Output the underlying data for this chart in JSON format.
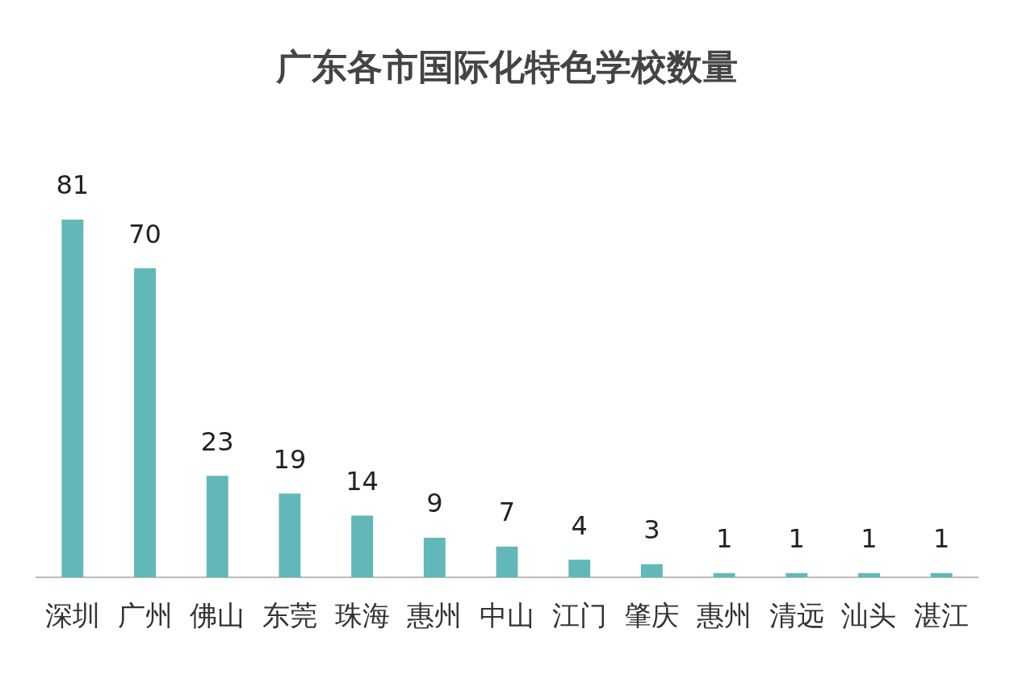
{
  "chart_data": {
    "type": "bar",
    "title": "广东各市国际化特色学校数量",
    "categories": [
      "深圳",
      "广州",
      "佛山",
      "东莞",
      "珠海",
      "惠州",
      "中山",
      "江门",
      "肇庆",
      "惠州",
      "清远",
      "汕头",
      "湛江"
    ],
    "values": [
      81,
      70,
      23,
      19,
      14,
      9,
      7,
      4,
      3,
      1,
      1,
      1,
      1
    ],
    "color": "#62b8b9",
    "data_labels": true
  }
}
